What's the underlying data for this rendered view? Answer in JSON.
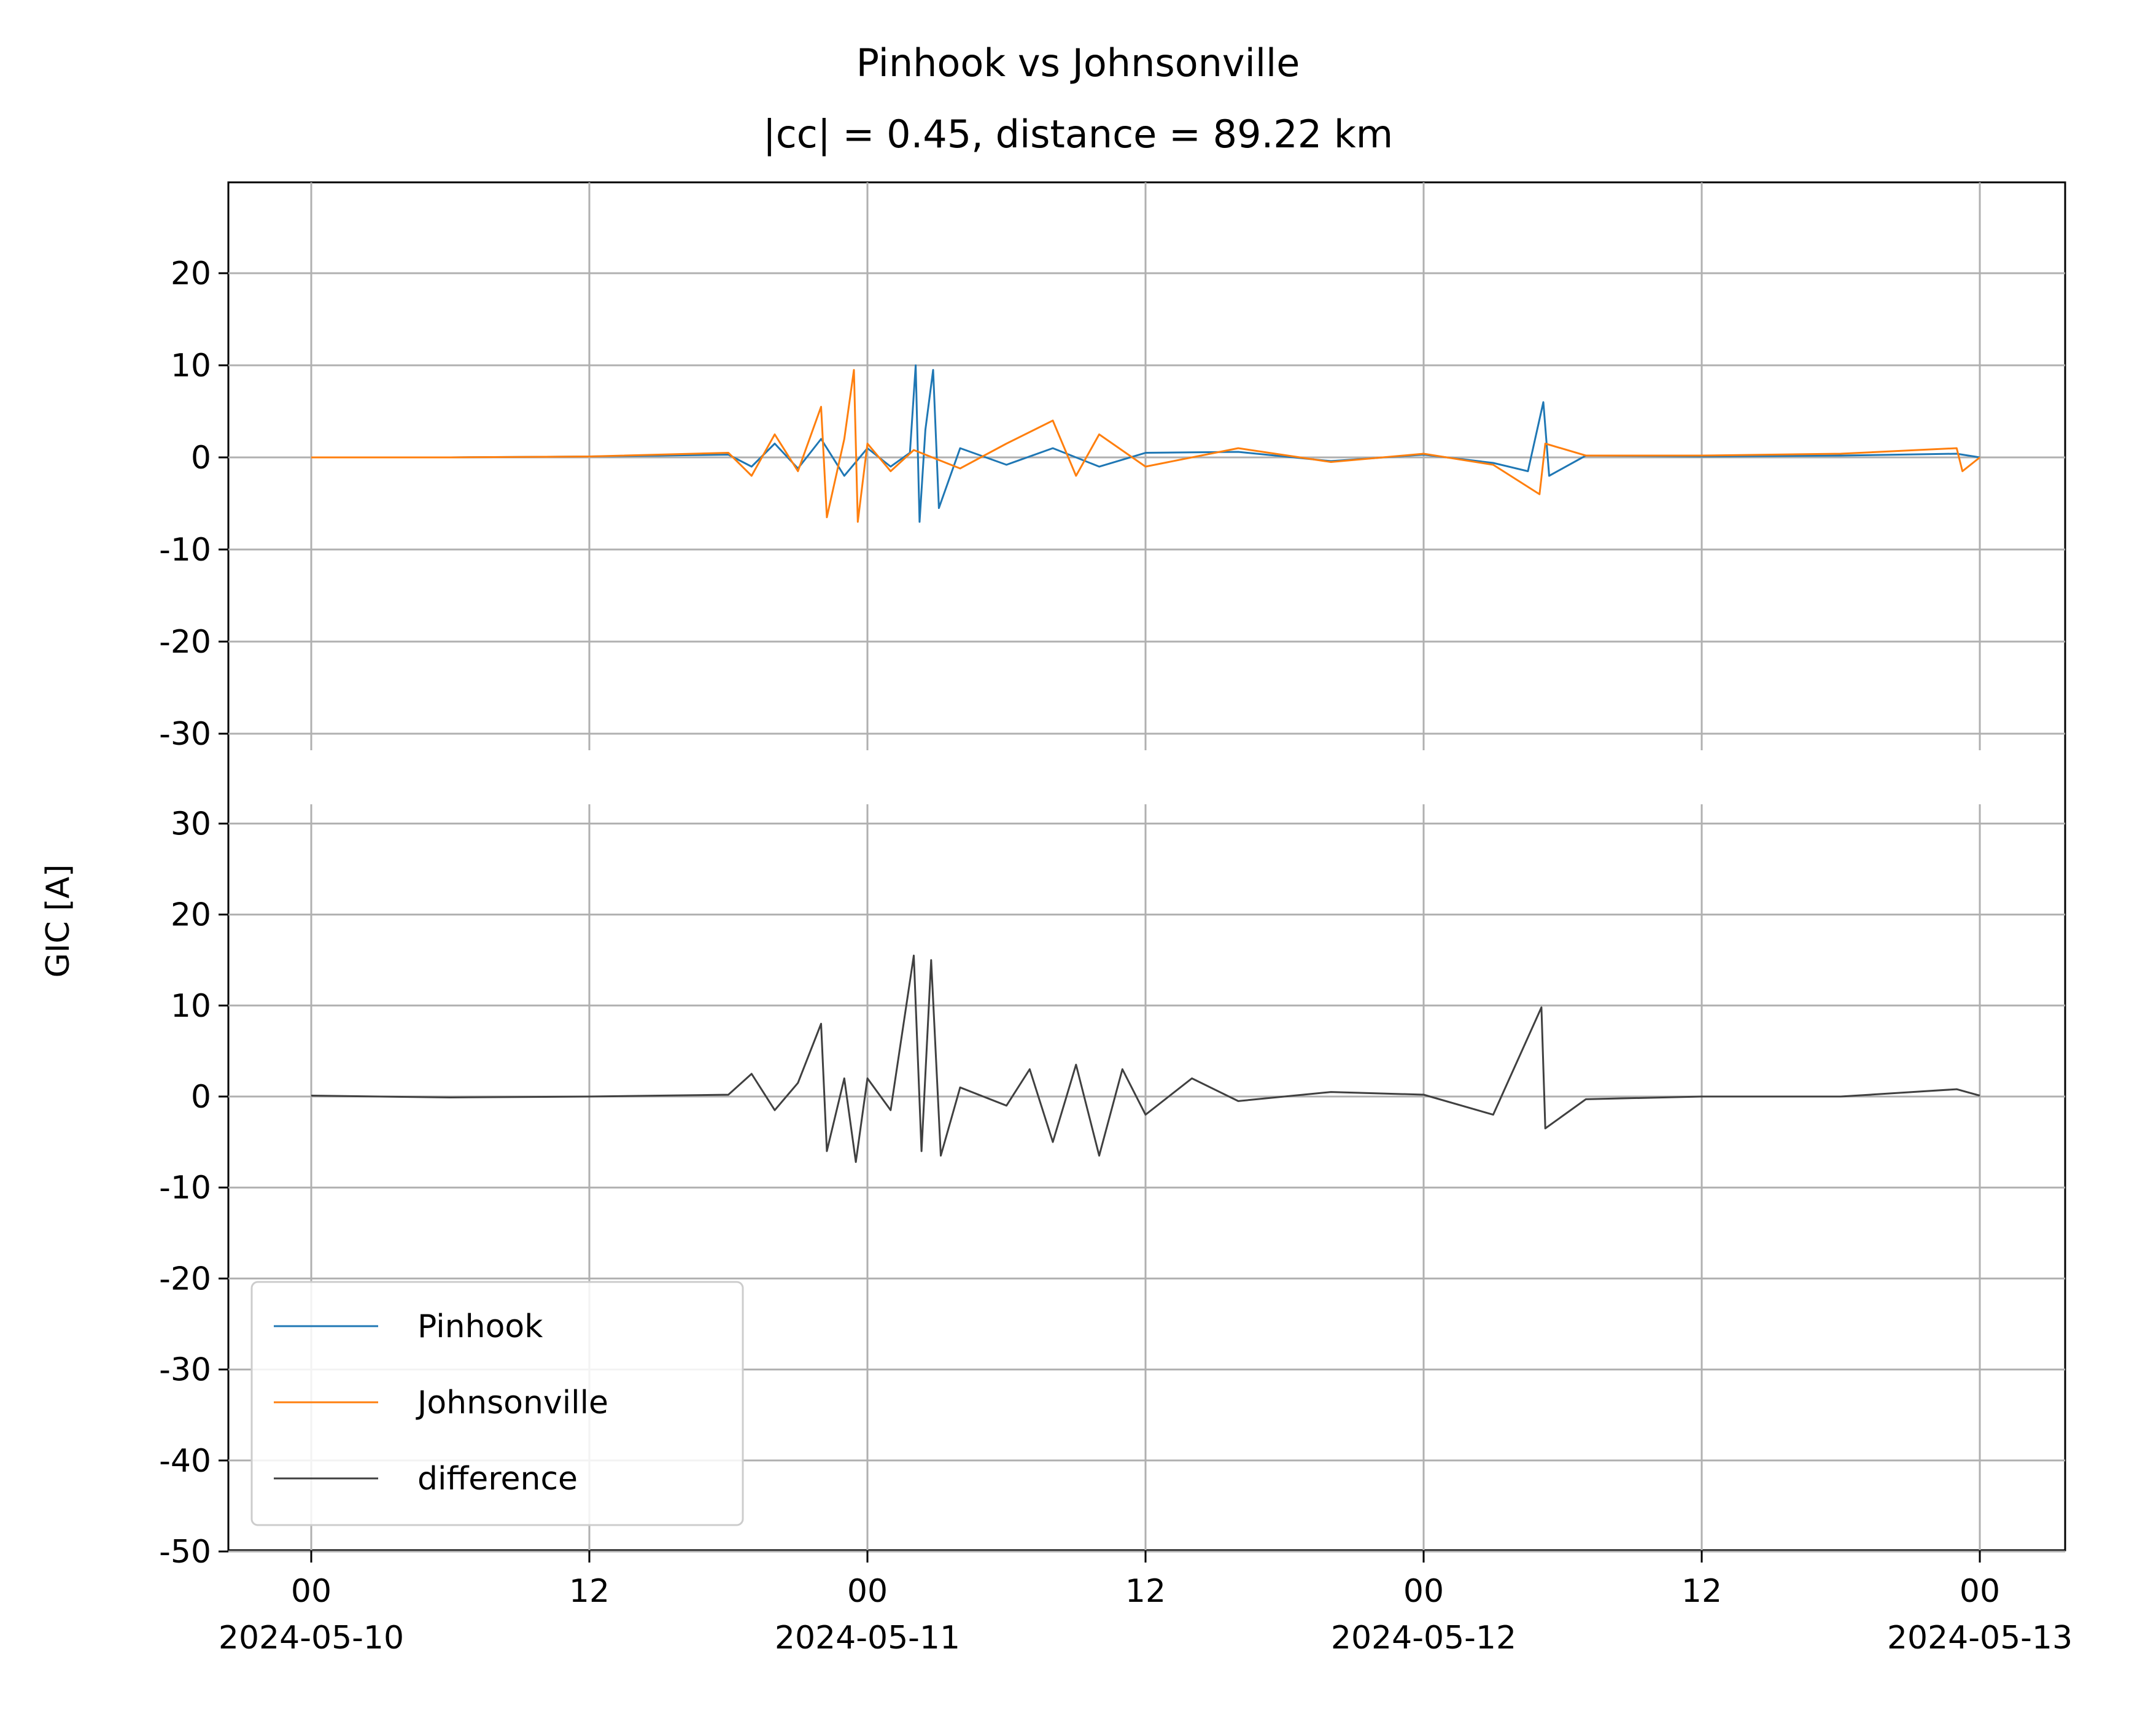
{
  "chart_data": {
    "type": "line",
    "title": "Pinhook vs Johnsonville",
    "subtitle": "|cc| = 0.45, distance = 89.22 km",
    "ylabel": "GIC [A]",
    "xlabel": "",
    "grid": true,
    "legend_position": "lower-left",
    "x_range": [
      "2024-05-10T00:00",
      "2024-05-13T00:00"
    ],
    "x_ticks": [
      {
        "time": "2024-05-10T00:00",
        "label": "00",
        "date": "2024-05-10"
      },
      {
        "time": "2024-05-10T12:00",
        "label": "12",
        "date": ""
      },
      {
        "time": "2024-05-11T00:00",
        "label": "00",
        "date": "2024-05-11"
      },
      {
        "time": "2024-05-11T12:00",
        "label": "12",
        "date": ""
      },
      {
        "time": "2024-05-12T00:00",
        "label": "00",
        "date": "2024-05-12"
      },
      {
        "time": "2024-05-12T12:00",
        "label": "12",
        "date": ""
      },
      {
        "time": "2024-05-13T00:00",
        "label": "00",
        "date": "2024-05-13"
      }
    ],
    "panels": [
      {
        "name": "top",
        "ylim": [
          -30,
          30
        ],
        "yticks": [
          20,
          10,
          0,
          -10,
          -20,
          -30
        ],
        "series": [
          {
            "name": "Pinhook",
            "color": "#1f77b4",
            "points": [
              [
                "2024-05-10T00:00",
                0
              ],
              [
                "2024-05-10T06:00",
                0
              ],
              [
                "2024-05-10T12:00",
                0.1
              ],
              [
                "2024-05-10T18:00",
                0.3
              ],
              [
                "2024-05-10T19:00",
                -1.0
              ],
              [
                "2024-05-10T20:00",
                1.5
              ],
              [
                "2024-05-10T21:00",
                -1.2
              ],
              [
                "2024-05-10T22:00",
                2.0
              ],
              [
                "2024-05-10T23:00",
                -2.0
              ],
              [
                "2024-05-11T00:00",
                1.0
              ],
              [
                "2024-05-11T01:00",
                -1.0
              ],
              [
                "2024-05-11T01:50",
                0.5
              ],
              [
                "2024-05-11T02:05",
                10.0
              ],
              [
                "2024-05-11T02:15",
                -7.0
              ],
              [
                "2024-05-11T02:30",
                3.0
              ],
              [
                "2024-05-11T02:50",
                9.5
              ],
              [
                "2024-05-11T03:05",
                -5.5
              ],
              [
                "2024-05-11T04:00",
                1.0
              ],
              [
                "2024-05-11T06:00",
                -0.8
              ],
              [
                "2024-05-11T08:00",
                1.0
              ],
              [
                "2024-05-11T10:00",
                -1.0
              ],
              [
                "2024-05-11T12:00",
                0.5
              ],
              [
                "2024-05-11T16:00",
                0.6
              ],
              [
                "2024-05-11T20:00",
                -0.4
              ],
              [
                "2024-05-12T00:00",
                0.3
              ],
              [
                "2024-05-12T03:00",
                -0.6
              ],
              [
                "2024-05-12T04:30",
                -1.5
              ],
              [
                "2024-05-12T05:10",
                6.0
              ],
              [
                "2024-05-12T05:25",
                -2.0
              ],
              [
                "2024-05-12T07:00",
                0.2
              ],
              [
                "2024-05-12T12:00",
                0.1
              ],
              [
                "2024-05-12T18:00",
                0.2
              ],
              [
                "2024-05-12T23:00",
                0.4
              ],
              [
                "2024-05-13T00:00",
                0
              ]
            ]
          },
          {
            "name": "Johnsonville",
            "color": "#ff7f0e",
            "points": [
              [
                "2024-05-10T00:00",
                0
              ],
              [
                "2024-05-10T06:00",
                0
              ],
              [
                "2024-05-10T12:00",
                0.1
              ],
              [
                "2024-05-10T18:00",
                0.5
              ],
              [
                "2024-05-10T19:00",
                -2.0
              ],
              [
                "2024-05-10T20:00",
                2.5
              ],
              [
                "2024-05-10T21:00",
                -1.5
              ],
              [
                "2024-05-10T22:00",
                5.5
              ],
              [
                "2024-05-10T22:15",
                -6.5
              ],
              [
                "2024-05-10T23:00",
                2.0
              ],
              [
                "2024-05-10T23:25",
                9.5
              ],
              [
                "2024-05-10T23:35",
                -7.0
              ],
              [
                "2024-05-11T00:00",
                1.5
              ],
              [
                "2024-05-11T01:00",
                -1.5
              ],
              [
                "2024-05-11T02:00",
                0.8
              ],
              [
                "2024-05-11T04:00",
                -1.2
              ],
              [
                "2024-05-11T06:00",
                1.5
              ],
              [
                "2024-05-11T08:00",
                4.0
              ],
              [
                "2024-05-11T09:00",
                -2.0
              ],
              [
                "2024-05-11T10:00",
                2.5
              ],
              [
                "2024-05-11T12:00",
                -1.0
              ],
              [
                "2024-05-11T16:00",
                1.0
              ],
              [
                "2024-05-11T20:00",
                -0.5
              ],
              [
                "2024-05-12T00:00",
                0.4
              ],
              [
                "2024-05-12T03:00",
                -0.8
              ],
              [
                "2024-05-12T05:00",
                -4.0
              ],
              [
                "2024-05-12T05:15",
                1.5
              ],
              [
                "2024-05-12T07:00",
                0.2
              ],
              [
                "2024-05-12T12:00",
                0.2
              ],
              [
                "2024-05-12T18:00",
                0.4
              ],
              [
                "2024-05-12T23:00",
                1.0
              ],
              [
                "2024-05-12T23:15",
                -1.5
              ],
              [
                "2024-05-13T00:00",
                0
              ]
            ]
          }
        ]
      },
      {
        "name": "bottom",
        "ylim": [
          -50,
          32
        ],
        "yticks": [
          30,
          20,
          10,
          0,
          -10,
          -20,
          -30,
          -40,
          -50
        ],
        "series": [
          {
            "name": "difference",
            "color": "#404040",
            "points": [
              [
                "2024-05-10T00:00",
                0.1
              ],
              [
                "2024-05-10T06:00",
                -0.1
              ],
              [
                "2024-05-10T12:00",
                0.0
              ],
              [
                "2024-05-10T18:00",
                0.2
              ],
              [
                "2024-05-10T19:00",
                2.5
              ],
              [
                "2024-05-10T20:00",
                -1.5
              ],
              [
                "2024-05-10T21:00",
                1.5
              ],
              [
                "2024-05-10T22:00",
                8.0
              ],
              [
                "2024-05-10T22:15",
                -6.0
              ],
              [
                "2024-05-10T23:00",
                2.0
              ],
              [
                "2024-05-10T23:30",
                -7.2
              ],
              [
                "2024-05-11T00:00",
                2.0
              ],
              [
                "2024-05-11T01:00",
                -1.5
              ],
              [
                "2024-05-11T02:00",
                15.5
              ],
              [
                "2024-05-11T02:20",
                -6.0
              ],
              [
                "2024-05-11T02:45",
                15.0
              ],
              [
                "2024-05-11T03:10",
                -6.5
              ],
              [
                "2024-05-11T04:00",
                1.0
              ],
              [
                "2024-05-11T06:00",
                -1.0
              ],
              [
                "2024-05-11T07:00",
                3.0
              ],
              [
                "2024-05-11T08:00",
                -5.0
              ],
              [
                "2024-05-11T09:00",
                3.5
              ],
              [
                "2024-05-11T10:00",
                -6.5
              ],
              [
                "2024-05-11T11:00",
                3.0
              ],
              [
                "2024-05-11T12:00",
                -2.0
              ],
              [
                "2024-05-11T14:00",
                2.0
              ],
              [
                "2024-05-11T16:00",
                -0.5
              ],
              [
                "2024-05-11T20:00",
                0.5
              ],
              [
                "2024-05-12T00:00",
                0.2
              ],
              [
                "2024-05-12T03:00",
                -2.0
              ],
              [
                "2024-05-12T05:05",
                9.8
              ],
              [
                "2024-05-12T05:15",
                -3.5
              ],
              [
                "2024-05-12T07:00",
                -0.3
              ],
              [
                "2024-05-12T12:00",
                0.0
              ],
              [
                "2024-05-12T18:00",
                0.0
              ],
              [
                "2024-05-12T23:00",
                0.8
              ],
              [
                "2024-05-13T00:00",
                0.1
              ]
            ]
          }
        ]
      }
    ]
  }
}
